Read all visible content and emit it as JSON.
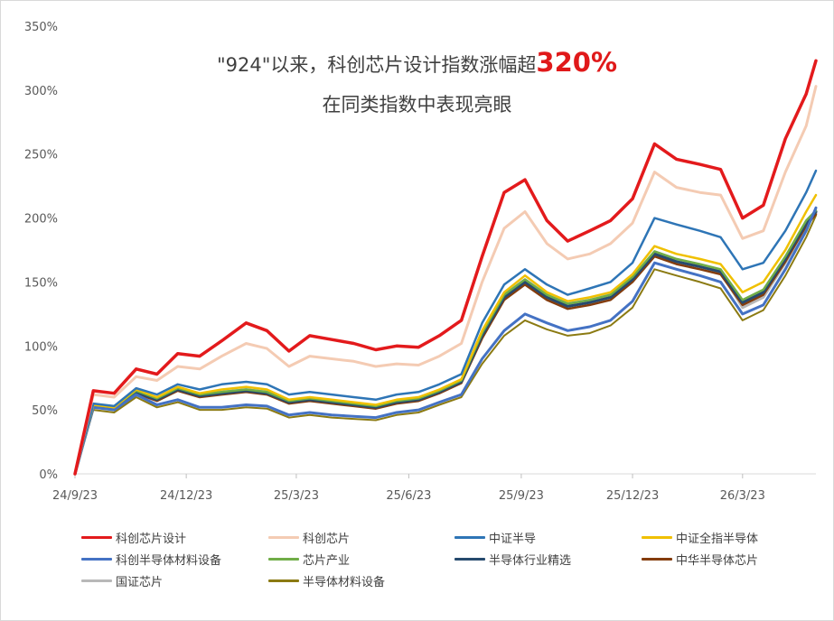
{
  "title": {
    "line1_prefix": "\"924\"以来，科创芯片设计指数涨幅超",
    "line1_highlight": "320%",
    "line2": "在同类指数中表现亮眼",
    "highlight_color": "#e0191a"
  },
  "chart_data": {
    "type": "line",
    "x_ticks": [
      "24/9/23",
      "24/12/23",
      "25/3/23",
      "25/6/23",
      "25/9/23",
      "25/12/23",
      "26/3/23"
    ],
    "y_ticks": [
      "0%",
      "50%",
      "100%",
      "150%",
      "200%",
      "250%",
      "300%",
      "350%"
    ],
    "ylim": [
      0,
      350
    ],
    "x_dates": [
      "24/9/23",
      "24/10/8",
      "24/10/25",
      "24/11/12",
      "24/11/29",
      "24/12/16",
      "25/1/3",
      "25/1/21",
      "25/2/10",
      "25/2/27",
      "25/3/17",
      "25/4/3",
      "25/4/21",
      "25/5/9",
      "25/5/27",
      "25/6/13",
      "25/7/1",
      "25/7/18",
      "25/8/5",
      "25/8/22",
      "25/9/9",
      "25/9/26",
      "25/10/14",
      "25/10/31",
      "25/11/18",
      "25/12/5",
      "25/12/23",
      "26/1/10",
      "26/1/28",
      "26/2/16",
      "26/3/5",
      "26/3/23",
      "26/4/9",
      "26/4/27",
      "26/5/14",
      "26/5/22"
    ],
    "grid": false,
    "legend_position": "bottom",
    "series": [
      {
        "name": "科创芯片设计",
        "color": "#e31a1c",
        "width": 3.5,
        "values": [
          0,
          65,
          63,
          82,
          78,
          94,
          92,
          104,
          118,
          112,
          96,
          108,
          105,
          102,
          97,
          100,
          99,
          108,
          120,
          170,
          220,
          230,
          198,
          182,
          190,
          198,
          215,
          258,
          246,
          242,
          238,
          200,
          210,
          262,
          297,
          323
        ]
      },
      {
        "name": "科创芯片",
        "color": "#f4cbb3",
        "width": 3,
        "values": [
          0,
          62,
          60,
          76,
          73,
          84,
          82,
          92,
          102,
          98,
          84,
          92,
          90,
          88,
          84,
          86,
          85,
          92,
          102,
          150,
          192,
          205,
          180,
          168,
          172,
          180,
          196,
          236,
          224,
          220,
          218,
          184,
          190,
          236,
          272,
          303
        ]
      },
      {
        "name": "中证半导",
        "color": "#2e75b6",
        "width": 2.5,
        "values": [
          0,
          55,
          53,
          67,
          62,
          70,
          66,
          70,
          72,
          70,
          62,
          64,
          62,
          60,
          58,
          62,
          64,
          70,
          78,
          118,
          148,
          160,
          148,
          140,
          145,
          150,
          165,
          200,
          195,
          190,
          185,
          160,
          165,
          190,
          220,
          237
        ]
      },
      {
        "name": "中证全指半导体",
        "color": "#f0c000",
        "width": 2.5,
        "values": [
          0,
          54,
          52,
          66,
          60,
          68,
          63,
          66,
          68,
          66,
          58,
          60,
          58,
          56,
          54,
          58,
          60,
          66,
          74,
          112,
          142,
          155,
          142,
          135,
          138,
          142,
          156,
          178,
          172,
          168,
          164,
          142,
          150,
          175,
          205,
          218
        ]
      },
      {
        "name": "科创半导体材料设备",
        "color": "#4472c4",
        "width": 3,
        "values": [
          0,
          52,
          50,
          62,
          54,
          58,
          52,
          52,
          54,
          53,
          46,
          48,
          46,
          45,
          44,
          48,
          50,
          56,
          62,
          90,
          112,
          125,
          118,
          112,
          115,
          120,
          135,
          165,
          160,
          155,
          150,
          125,
          132,
          160,
          190,
          208
        ]
      },
      {
        "name": "芯片产业",
        "color": "#70ad47",
        "width": 2.5,
        "values": [
          0,
          54,
          52,
          65,
          59,
          67,
          62,
          64,
          66,
          64,
          57,
          59,
          57,
          55,
          53,
          57,
          59,
          65,
          73,
          110,
          140,
          152,
          140,
          133,
          136,
          140,
          154,
          174,
          168,
          164,
          160,
          136,
          144,
          170,
          198,
          206
        ]
      },
      {
        "name": "半导体行业精选",
        "color": "#264a6e",
        "width": 3,
        "values": [
          0,
          53,
          51,
          64,
          58,
          66,
          61,
          63,
          65,
          63,
          56,
          58,
          56,
          54,
          52,
          56,
          58,
          64,
          72,
          108,
          138,
          150,
          138,
          131,
          134,
          138,
          152,
          172,
          166,
          162,
          158,
          134,
          142,
          168,
          196,
          205
        ]
      },
      {
        "name": "中华半导体芯片",
        "color": "#843c0c",
        "width": 2.5,
        "values": [
          0,
          53,
          51,
          63,
          57,
          65,
          60,
          62,
          64,
          62,
          55,
          57,
          55,
          53,
          51,
          55,
          57,
          63,
          71,
          106,
          136,
          148,
          136,
          129,
          132,
          136,
          150,
          170,
          164,
          160,
          156,
          132,
          140,
          166,
          194,
          203
        ]
      },
      {
        "name": "国证芯片",
        "color": "#b8b8b8",
        "width": 3,
        "values": [
          0,
          54,
          52,
          65,
          59,
          67,
          62,
          64,
          66,
          64,
          57,
          59,
          57,
          55,
          53,
          57,
          59,
          65,
          73,
          110,
          140,
          152,
          140,
          133,
          136,
          140,
          154,
          172,
          166,
          162,
          158,
          130,
          138,
          165,
          193,
          204
        ]
      },
      {
        "name": "半导体材料设备",
        "color": "#8b7a12",
        "width": 2,
        "values": [
          0,
          50,
          48,
          60,
          52,
          56,
          50,
          50,
          52,
          51,
          44,
          46,
          44,
          43,
          42,
          46,
          48,
          54,
          60,
          86,
          108,
          120,
          113,
          108,
          110,
          116,
          130,
          160,
          155,
          150,
          145,
          120,
          128,
          155,
          185,
          202
        ]
      }
    ]
  }
}
